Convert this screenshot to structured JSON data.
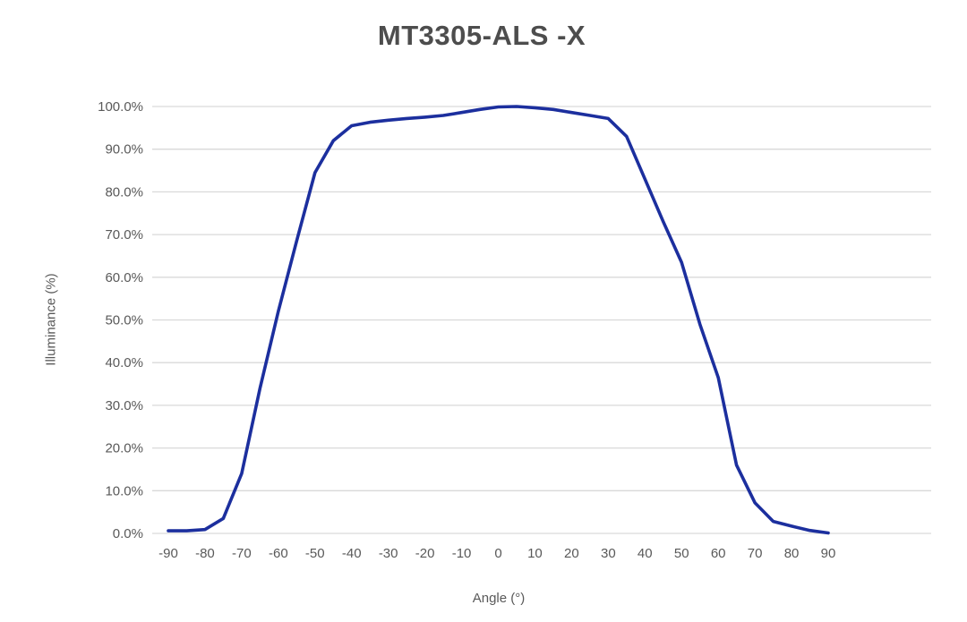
{
  "chart_data": {
    "type": "line",
    "title": "MT3305-ALS -X",
    "xlabel": "Angle (°)",
    "ylabel": "Illuminance (%)",
    "legend": "none",
    "grid": "horizontal",
    "xlim": [
      -90,
      90
    ],
    "ylim": [
      0,
      100
    ],
    "x": [
      -90,
      -85,
      -80,
      -75,
      -70,
      -65,
      -60,
      -55,
      -50,
      -45,
      -40,
      -35,
      -30,
      -25,
      -20,
      -15,
      -10,
      -5,
      0,
      5,
      10,
      15,
      20,
      25,
      30,
      35,
      40,
      45,
      50,
      55,
      60,
      65,
      70,
      75,
      80,
      85,
      90
    ],
    "values": [
      0.6,
      0.6,
      0.9,
      3.5,
      14.0,
      34.0,
      52.0,
      68.5,
      84.5,
      92.0,
      95.5,
      96.3,
      96.8,
      97.2,
      97.5,
      97.9,
      98.6,
      99.3,
      99.9,
      100.0,
      99.7,
      99.3,
      98.6,
      97.9,
      97.2,
      93.0,
      83.0,
      73.0,
      63.5,
      49.0,
      36.5,
      16.0,
      7.2,
      2.8,
      1.7,
      0.7,
      0.1
    ],
    "x_tick_values": [
      -90,
      -80,
      -70,
      -60,
      -50,
      -40,
      -30,
      -20,
      -10,
      0,
      10,
      20,
      30,
      40,
      50,
      60,
      70,
      80,
      90
    ],
    "x_tick_labels": [
      "-90",
      "-80",
      "-70",
      "-60",
      "-50",
      "-40",
      "-30",
      "-20",
      "-10",
      "0",
      "10",
      "20",
      "30",
      "40",
      "50",
      "60",
      "70",
      "80",
      "90"
    ],
    "y_tick_values": [
      0,
      10,
      20,
      30,
      40,
      50,
      60,
      70,
      80,
      90,
      100
    ],
    "y_tick_labels": [
      "0.0%",
      "10.0%",
      "20.0%",
      "30.0%",
      "40.0%",
      "50.0%",
      "60.0%",
      "70.0%",
      "80.0%",
      "90.0%",
      "100.0%"
    ],
    "line_color": "#1c2f9e",
    "grid_color": "#d9d9d9",
    "text_color": "#595959",
    "title_color": "#4d4d4d",
    "background_color": "#ffffff"
  }
}
